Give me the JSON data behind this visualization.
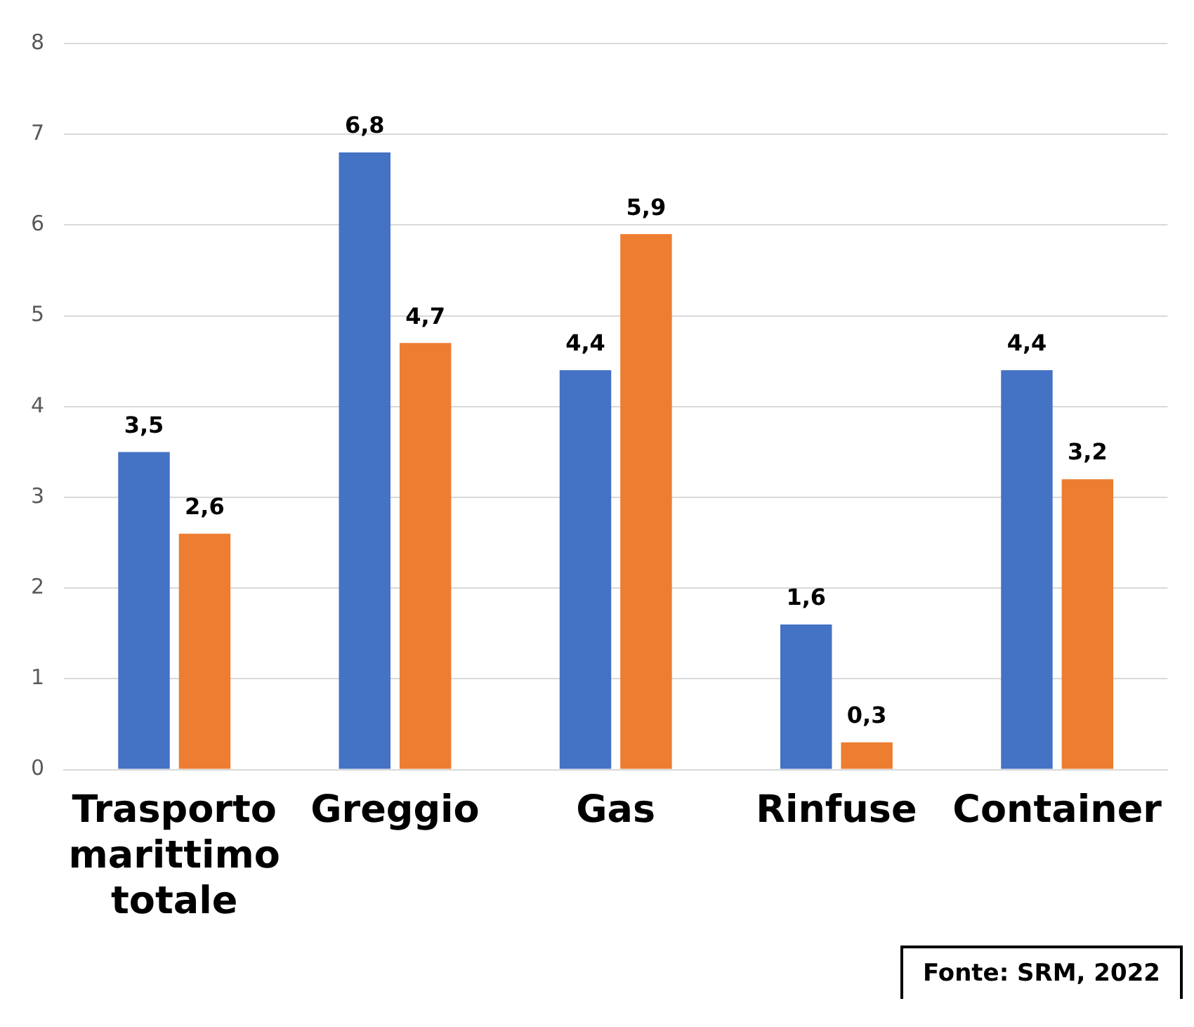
{
  "chart_data": {
    "type": "bar",
    "categories": [
      "Trasporto marittimo totale",
      "Greggio",
      "Gas",
      "Rinfuse",
      "Container"
    ],
    "series": [
      {
        "color": "#4472c4",
        "values": [
          3.5,
          6.8,
          4.4,
          1.6,
          4.4
        ],
        "value_labels": [
          "3,5",
          "6,8",
          "4,4",
          "1,6",
          "4,4"
        ]
      },
      {
        "color": "#ed7d31",
        "values": [
          2.6,
          4.7,
          5.9,
          0.3,
          3.2
        ],
        "value_labels": [
          "2,6",
          "4,7",
          "5,9",
          "0,3",
          "3,2"
        ]
      }
    ],
    "ylim": [
      0,
      8
    ],
    "yticks": [
      0,
      1,
      2,
      3,
      4,
      5,
      6,
      7,
      8
    ],
    "grid": "y",
    "legend": false,
    "annotations": [
      "Fonte: SRM, 2022"
    ]
  }
}
